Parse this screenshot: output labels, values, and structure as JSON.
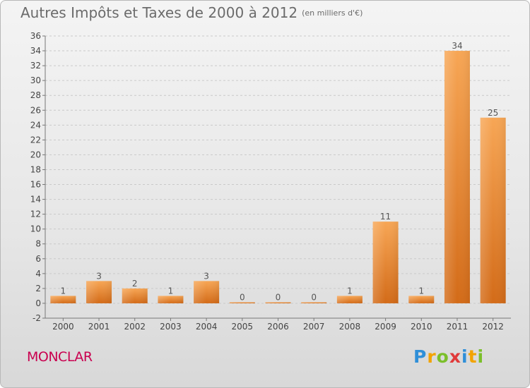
{
  "title": {
    "main": "Autres Impôts et Taxes de 2000 à 2012",
    "unit": "(en milliers d'€)"
  },
  "commune": "MONCLAR",
  "brand": {
    "letters": [
      {
        "ch": "P",
        "color": "#2f8fd8"
      },
      {
        "ch": "r",
        "color": "#f2a300"
      },
      {
        "ch": "o",
        "color": "#7bbf2a"
      },
      {
        "ch": "x",
        "color": "#e03a3a"
      },
      {
        "ch": "i",
        "color": "#2f8fd8"
      },
      {
        "ch": "t",
        "color": "#f2a300"
      },
      {
        "ch": "i",
        "color": "#7bbf2a"
      }
    ]
  },
  "chart_data": {
    "type": "bar",
    "categories": [
      "2000",
      "2001",
      "2002",
      "2003",
      "2004",
      "2005",
      "2006",
      "2007",
      "2008",
      "2009",
      "2010",
      "2011",
      "2012"
    ],
    "values": [
      1,
      3,
      2,
      1,
      3,
      0,
      0,
      0,
      1,
      11,
      1,
      34,
      25
    ],
    "ylim": [
      -2,
      36
    ],
    "yticks": [
      -2,
      0,
      2,
      4,
      6,
      8,
      10,
      12,
      14,
      16,
      18,
      20,
      22,
      24,
      26,
      28,
      30,
      32,
      34,
      36
    ],
    "grid": "horizontal-dashed",
    "bar_color": "#f0a050"
  }
}
